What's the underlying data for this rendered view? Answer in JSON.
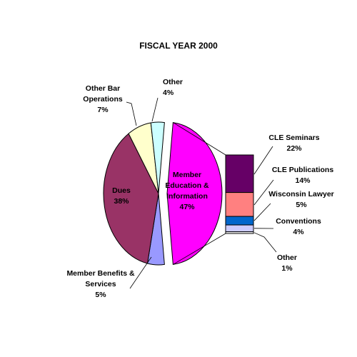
{
  "chart_data": {
    "type": "bar-of-pie",
    "title": "FISCAL YEAR 2000",
    "pie": {
      "slices": [
        {
          "name": "Member Education & Information",
          "value": 47,
          "label_lines": [
            "Member",
            "Education &",
            "Information"
          ],
          "pct": "47%",
          "color": "#ff00ff",
          "exploded": true
        },
        {
          "name": "Member Benefits & Services",
          "value": 5,
          "label_lines": [
            "Member Benefits &",
            "Services"
          ],
          "pct": "5%",
          "color": "#9999ff",
          "exploded": false
        },
        {
          "name": "Dues",
          "value": 38,
          "label_lines": [
            "Dues"
          ],
          "pct": "38%",
          "color": "#993366",
          "exploded": false
        },
        {
          "name": "Other Bar Operations",
          "value": 7,
          "label_lines": [
            "Other Bar",
            "Operations"
          ],
          "pct": "7%",
          "color": "#ffffcc",
          "exploded": false
        },
        {
          "name": "Other",
          "value": 4,
          "label_lines": [
            "Other"
          ],
          "pct": "4%",
          "color": "#ccffff",
          "exploded": false
        }
      ]
    },
    "bar": {
      "segments": [
        {
          "name": "CLE Seminars",
          "value": 22,
          "label_lines": [
            "CLE Seminars"
          ],
          "pct": "22%",
          "color": "#660066"
        },
        {
          "name": "CLE Publications",
          "value": 14,
          "label_lines": [
            "CLE Publications"
          ],
          "pct": "14%",
          "color": "#ff8080"
        },
        {
          "name": "Wisconsin Lawyer",
          "value": 5,
          "label_lines": [
            "Wisconsin Lawyer"
          ],
          "pct": "5%",
          "color": "#0066cc"
        },
        {
          "name": "Conventions",
          "value": 4,
          "label_lines": [
            "Conventions"
          ],
          "pct": "4%",
          "color": "#ccccff"
        },
        {
          "name": "Other",
          "value": 1,
          "label_lines": [
            "Other"
          ],
          "pct": "1%",
          "color": "#ffffff"
        }
      ]
    }
  }
}
